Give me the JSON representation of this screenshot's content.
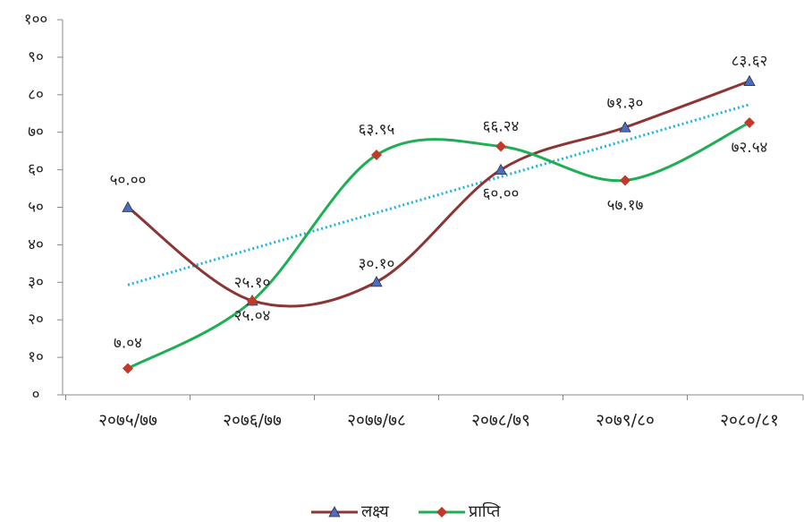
{
  "chart_data": {
    "type": "line",
    "categories": [
      "२०७५/७७",
      "२०७६/७७",
      "२०७७/७८",
      "२०७८/७९",
      "२०७९/८०",
      "२०८०/८१"
    ],
    "series": [
      {
        "name": "लक्ष्य",
        "color": "#8b3535",
        "marker": "triangle",
        "marker_color": "#4a6cc4",
        "values": [
          50.0,
          25.1,
          30.1,
          60.0,
          71.3,
          83.62
        ],
        "value_labels": [
          "५०.००",
          "२५.१०",
          "३०.१०",
          "६०.००",
          "७१.३०",
          "८३.६२"
        ]
      },
      {
        "name": "प्राप्ति",
        "color": "#1fae55",
        "marker": "diamond",
        "marker_color": "#c0392b",
        "values": [
          7.04,
          25.04,
          63.95,
          66.24,
          57.17,
          72.54
        ],
        "value_labels": [
          "७.०४",
          "२५.०४",
          "६३.९५",
          "६६.२४",
          "५७.१७",
          "७२.५४"
        ]
      }
    ],
    "smooth": true,
    "trendline": {
      "series": 0,
      "color": "#1fb4e0"
    },
    "ylim": [
      0,
      100
    ],
    "yticks": [
      {
        "value": 0,
        "label": "०"
      },
      {
        "value": 10,
        "label": "१०"
      },
      {
        "value": 20,
        "label": "२०"
      },
      {
        "value": 30,
        "label": "३०"
      },
      {
        "value": 40,
        "label": "४०"
      },
      {
        "value": 50,
        "label": "५०"
      },
      {
        "value": 60,
        "label": "६०"
      },
      {
        "value": 70,
        "label": "७०"
      },
      {
        "value": 80,
        "label": "८०"
      },
      {
        "value": 90,
        "label": "९०"
      },
      {
        "value": 100,
        "label": "१००"
      }
    ],
    "legend": "bottom"
  }
}
